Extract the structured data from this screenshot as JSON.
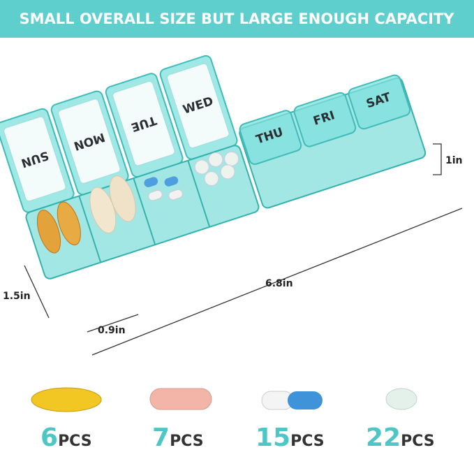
{
  "header": {
    "title": "SMALL OVERALL SIZE BUT LARGE ENOUGH CAPACITY"
  },
  "days": [
    "SUN",
    "MON",
    "TUE",
    "WED",
    "THU",
    "FRI",
    "SAT"
  ],
  "dimensions": {
    "height": "1.5in",
    "length": "6.8in",
    "width": "0.9in",
    "lid": "1in"
  },
  "items": [
    {
      "count": 6,
      "unit": "PCS"
    },
    {
      "count": 7,
      "unit": "PCS"
    },
    {
      "count": 15,
      "unit": "PCS"
    },
    {
      "count": 22,
      "unit": "PCS"
    }
  ]
}
